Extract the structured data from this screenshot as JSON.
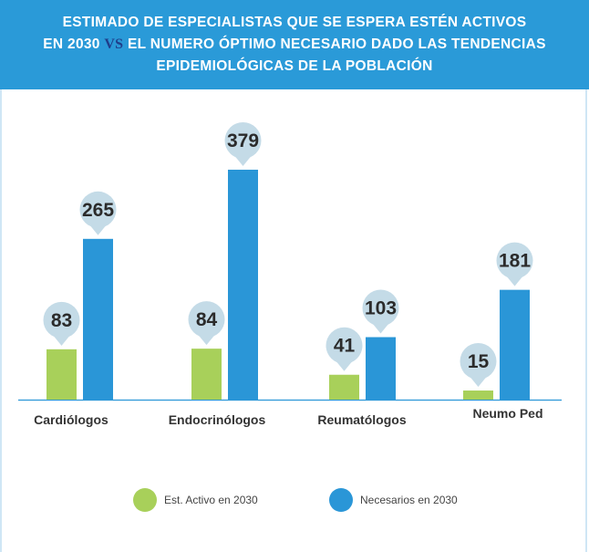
{
  "header": {
    "line1": "ESTIMADO DE ESPECIALISTAS QUE SE ESPERA ESTÉN ACTIVOS",
    "line2_pre": "EN 2030 ",
    "line2_vs": "VS",
    "line2_post": " EL NUMERO ÓPTIMO NECESARIO DADO LAS TENDENCIAS",
    "line3": "EPIDEMIOLÓGICAS DE LA POBLACIÓN"
  },
  "colors": {
    "header_bg": "#2a9ad8",
    "active": "#a8d05a",
    "needed": "#2a96d7",
    "bubble": "#c4dbe7",
    "axis": "#2a96d7"
  },
  "chart_data": {
    "type": "bar",
    "title": "ESTIMADO DE ESPECIALISTAS QUE SE ESPERA ESTÉN ACTIVOS EN 2030 VS EL NUMERO ÓPTIMO NECESARIO DADO LAS TENDENCIAS EPIDEMIOLÓGICAS DE LA POBLACIÓN",
    "categories": [
      "Cardiólogos",
      "Endocrinólogos",
      "Reumatólogos",
      "Neumo Ped"
    ],
    "series": [
      {
        "name": "Est. Activo en 2030",
        "values": [
          83,
          84,
          41,
          15
        ]
      },
      {
        "name": "Necesarios en 2030",
        "values": [
          265,
          379,
          103,
          181
        ]
      }
    ],
    "ylim": [
      0,
      379
    ],
    "grid": false,
    "legend": "bottom",
    "data_labels": true
  },
  "legend": {
    "active_label": "Est. Activo en 2030",
    "needed_label": "Necesarios en 2030"
  }
}
